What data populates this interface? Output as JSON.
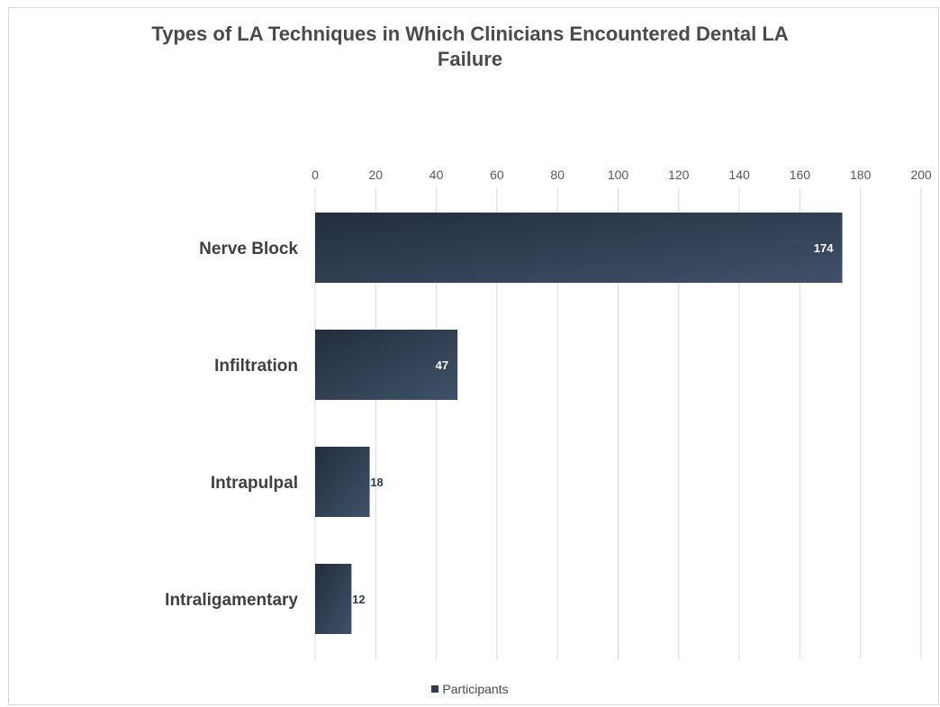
{
  "chart_data": {
    "type": "bar",
    "orientation": "horizontal",
    "title_lines": [
      "Types of LA Techniques in Which Clinicians Encountered Dental LA",
      "Failure"
    ],
    "categories": [
      "Nerve Block",
      "Infiltration",
      "Intrapulpal",
      "Intraligamentary"
    ],
    "series": [
      {
        "name": "Participants",
        "values": [
          174,
          47,
          18,
          12
        ]
      }
    ],
    "xlim": [
      0,
      200
    ],
    "ticks": [
      "0",
      "20",
      "40",
      "60",
      "80",
      "100",
      "120",
      "140",
      "160",
      "180",
      "200"
    ],
    "data_labels": [
      "174",
      "47",
      "18",
      "12"
    ],
    "grid": true,
    "legend_position": "bottom",
    "colors": {
      "bar_dark": "#232e3e",
      "bar_light": "#3f5169",
      "label_text": "#2f3d52",
      "grid": "#d9d9d9",
      "axis_text": "#595959"
    }
  }
}
